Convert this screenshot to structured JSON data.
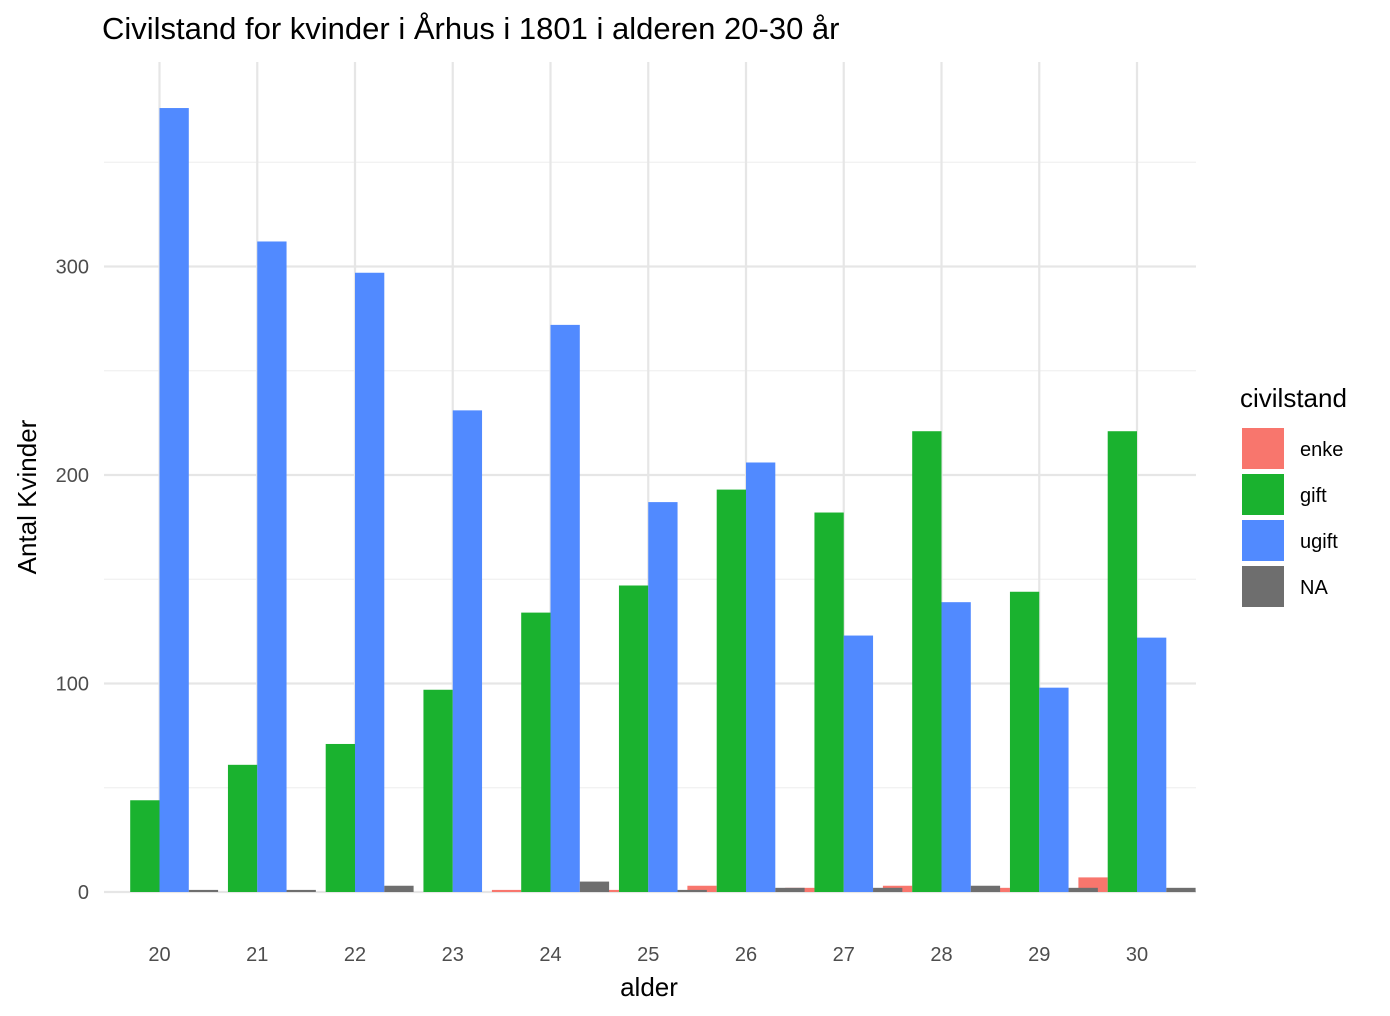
{
  "chart_data": {
    "type": "bar",
    "title": "Civilstand for kvinder i Århus i 1801 i alderen 20-30 år",
    "xlabel": "alder",
    "ylabel": "Antal Kvinder",
    "categories": [
      "20",
      "21",
      "22",
      "23",
      "24",
      "25",
      "26",
      "27",
      "28",
      "29",
      "30"
    ],
    "y_ticks": [
      0,
      100,
      200,
      300
    ],
    "ylim": [
      0,
      377
    ],
    "grid": true,
    "legend_title": "civilstand",
    "legend_position": "right",
    "series": [
      {
        "name": "enke",
        "color": "#F8766D",
        "values": [
          0,
          0,
          0,
          0,
          1,
          1,
          3,
          2,
          3,
          2,
          7
        ]
      },
      {
        "name": "gift",
        "color": "#1AB22F",
        "values": [
          44,
          61,
          71,
          97,
          134,
          147,
          193,
          182,
          221,
          144,
          221
        ]
      },
      {
        "name": "ugift",
        "color": "#518AFF",
        "values": [
          376,
          312,
          297,
          231,
          272,
          187,
          206,
          123,
          139,
          98,
          122
        ]
      },
      {
        "name": "NA",
        "color": "#6E6E6E",
        "values": [
          1,
          1,
          3,
          0,
          5,
          1,
          2,
          2,
          3,
          2,
          2
        ]
      }
    ]
  }
}
